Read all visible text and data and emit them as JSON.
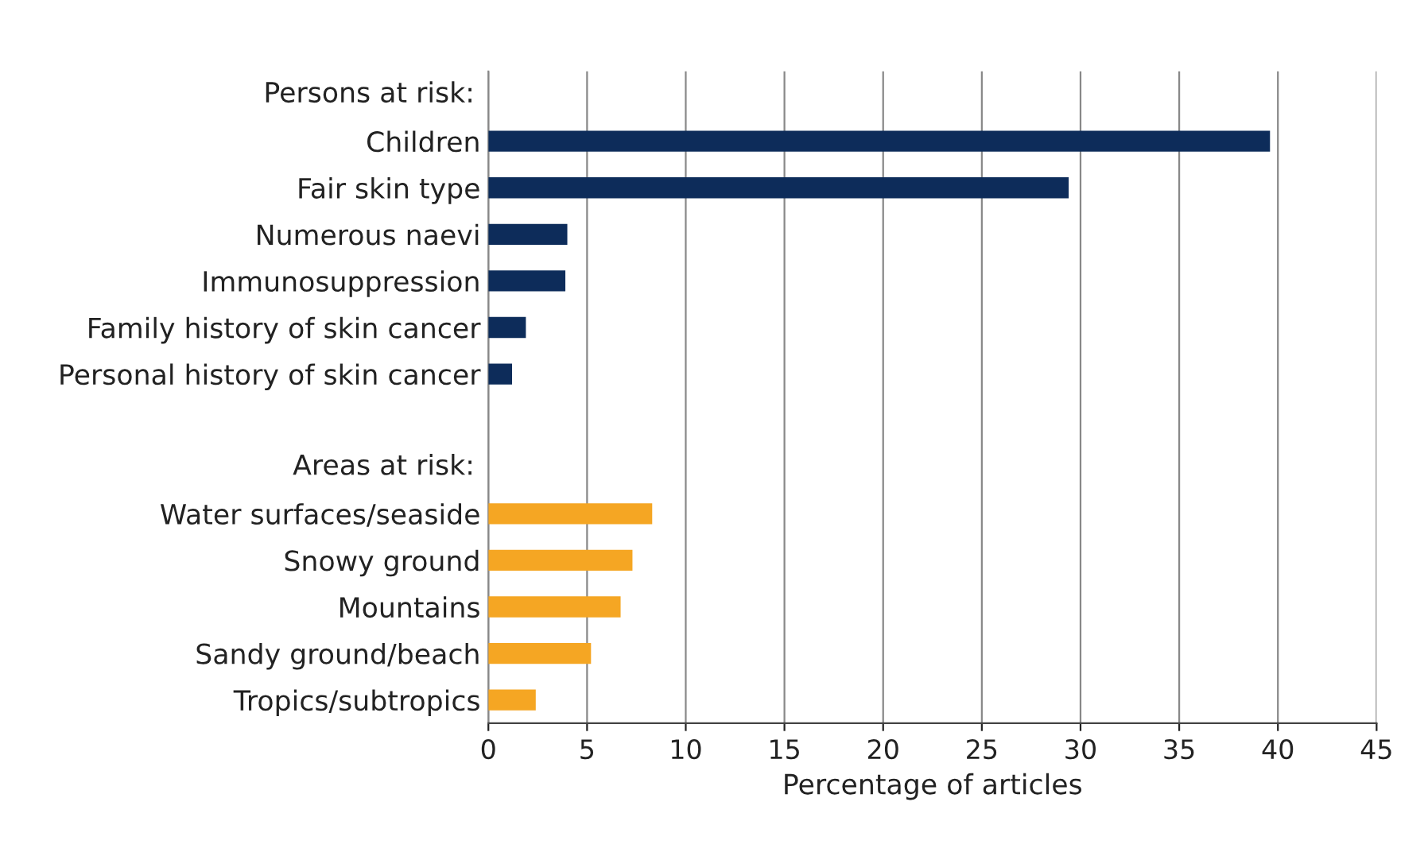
{
  "chart_data": {
    "type": "bar",
    "orientation": "horizontal",
    "xlabel": "Percentage of articles",
    "annotations": [
      {
        "text": "Persons at risk:"
      },
      {
        "text": "Areas at risk:"
      }
    ],
    "categories": [
      null,
      "Children",
      "Fair skin type",
      "Numerous naevi",
      "Immunosuppression",
      "Family history of skin cancer",
      "Personal history of skin cancer",
      null,
      null,
      "Water surfaces/seaside",
      "Snowy ground",
      "Mountains",
      "Sandy ground/beach",
      "Tropics/subtropics"
    ],
    "values": [
      null,
      39.6,
      29.4,
      4.0,
      3.9,
      1.9,
      1.2,
      null,
      null,
      8.3,
      7.3,
      6.7,
      5.2,
      2.4
    ],
    "colors": [
      "#0d2c5a",
      "#0d2c5a",
      "#0d2c5a",
      "#0d2c5a",
      "#0d2c5a",
      "#0d2c5a",
      "#0d2c5a",
      "#0d2c5a",
      "#f5a623",
      "#f5a623",
      "#f5a623",
      "#f5a623",
      "#f5a623",
      "#f5a623"
    ],
    "xlim": [
      0,
      45
    ],
    "xticks": [
      0,
      5,
      10,
      15,
      20,
      25,
      30,
      35,
      40,
      45
    ],
    "grid": "x",
    "legend": false
  }
}
